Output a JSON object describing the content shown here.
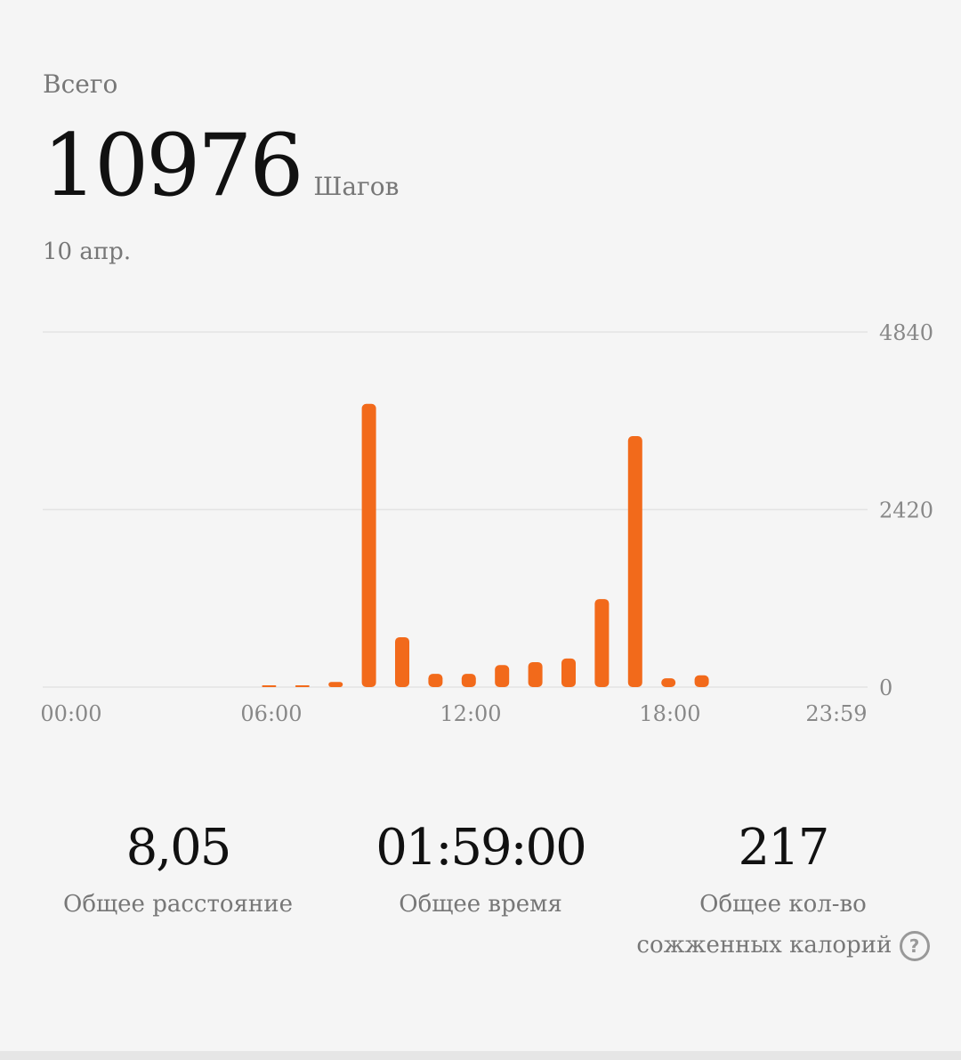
{
  "header": {
    "total_label": "Всего",
    "steps": "10976",
    "unit": "Шагов",
    "date": "10 апр."
  },
  "chart_data": {
    "type": "bar",
    "x_hours": [
      6,
      7,
      8,
      9,
      10,
      11,
      12,
      13,
      14,
      15,
      16,
      17,
      18,
      19
    ],
    "values": [
      10,
      20,
      70,
      3860,
      680,
      180,
      180,
      300,
      340,
      390,
      1200,
      3420,
      120,
      160
    ],
    "ylim": [
      0,
      4840
    ],
    "yticks": [
      "4840",
      "2420",
      "0"
    ],
    "xticks": [
      "00:00",
      "06:00",
      "12:00",
      "18:00",
      "23:59"
    ],
    "grid": true,
    "bar_color": "#f26a1b"
  },
  "stats": [
    {
      "value": "8,05",
      "label": "Общее расстояние"
    },
    {
      "value": "01:59:00",
      "label": "Общее время"
    },
    {
      "value": "217",
      "label": "Общее кол-во сожженных калорий"
    }
  ],
  "help_icon": "question-circle-icon"
}
